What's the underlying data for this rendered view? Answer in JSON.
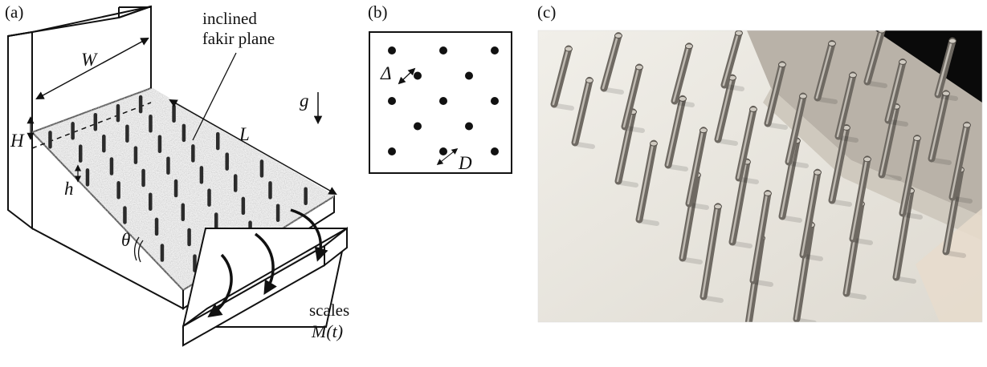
{
  "panels": {
    "a": {
      "tag": "(a)",
      "plane_label_line1": "inclined",
      "plane_label_line2": "fakir plane",
      "sym_W": "W",
      "sym_H": "H",
      "sym_L": "L",
      "sym_h": "h",
      "sym_theta": "θ",
      "sym_g": "g",
      "scales_line1": "scales",
      "scales_line2": "M(t)"
    },
    "b": {
      "tag": "(b)",
      "sym_Delta": "Δ",
      "sym_D": "D",
      "pin_rows": 5
    },
    "c": {
      "tag": "(c)",
      "photo_subject": "array-of-steel-pins-on-white-inclined-plate"
    }
  },
  "colors": {
    "plane_fill": "#9a9a9a",
    "pin": "#2b2b2b",
    "line": "#111111",
    "photo_bg": "#e9e6df",
    "photo_wall": "#b7b0a6",
    "photo_corner": "#0a0a0a",
    "photo_pin": "#7c7770"
  }
}
